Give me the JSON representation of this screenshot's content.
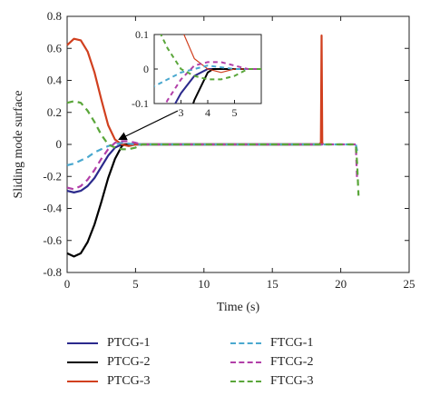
{
  "chart_data": {
    "type": "line",
    "xlabel": "Time (s)",
    "ylabel": "Sliding mode surface",
    "xlim": [
      0,
      25
    ],
    "ylim": [
      -0.8,
      0.8
    ],
    "xticks": [
      "0",
      "5",
      "10",
      "15",
      "20",
      "25"
    ],
    "yticks": [
      "-0.8",
      "-0.6",
      "-0.4",
      "-0.2",
      "0",
      "0.2",
      "0.4",
      "0.6",
      "0.8"
    ],
    "grid": false,
    "legend_position": "bottom",
    "series": [
      {
        "name": "PTCG-1",
        "color": "#2b2a8c",
        "dash": "solid",
        "x": [
          0,
          0.5,
          1,
          1.5,
          2,
          2.5,
          3,
          3.5,
          4,
          5,
          10,
          15,
          18.6
        ],
        "y": [
          -0.29,
          -0.3,
          -0.29,
          -0.26,
          -0.21,
          -0.14,
          -0.07,
          -0.02,
          0.0,
          0.0,
          0.0,
          0.0,
          0.0
        ]
      },
      {
        "name": "PTCG-2",
        "color": "#000000",
        "dash": "solid",
        "x": [
          0,
          0.5,
          1,
          1.5,
          2,
          2.5,
          3,
          3.5,
          4,
          4.2,
          5,
          10,
          15,
          18.6
        ],
        "y": [
          -0.68,
          -0.7,
          -0.68,
          -0.61,
          -0.5,
          -0.36,
          -0.21,
          -0.09,
          -0.01,
          0.0,
          0.0,
          0.0,
          0.0,
          0.0
        ]
      },
      {
        "name": "PTCG-3",
        "color": "#d1401f",
        "dash": "solid",
        "x": [
          0,
          0.5,
          1,
          1.5,
          2,
          2.5,
          3,
          3.5,
          4,
          4.5,
          5,
          10,
          15,
          18.4,
          18.55,
          18.6,
          18.65,
          18.7
        ],
        "y": [
          0.62,
          0.66,
          0.65,
          0.58,
          0.45,
          0.28,
          0.12,
          0.03,
          0.0,
          -0.01,
          0.0,
          0.0,
          0.0,
          0.0,
          0.01,
          0.68,
          0.01,
          0.0
        ]
      },
      {
        "name": "FTCG-1",
        "color": "#4aa8cf",
        "dash": "dashed",
        "x": [
          0,
          0.5,
          1,
          1.5,
          2,
          2.5,
          3,
          3.5,
          4,
          4.5,
          5,
          10,
          15,
          20,
          21.1,
          21.2
        ],
        "y": [
          -0.13,
          -0.12,
          -0.1,
          -0.08,
          -0.05,
          -0.03,
          -0.01,
          0.0,
          0.01,
          0.005,
          0.0,
          0.0,
          0.0,
          0.0,
          0.0,
          -0.04
        ]
      },
      {
        "name": "FTCG-2",
        "color": "#b23fa8",
        "dash": "dashed",
        "x": [
          0,
          0.5,
          1,
          1.5,
          2,
          2.5,
          3,
          3.5,
          4,
          4.5,
          5,
          5.5,
          10,
          15,
          20,
          21.1,
          21.2
        ],
        "y": [
          -0.27,
          -0.28,
          -0.26,
          -0.22,
          -0.16,
          -0.09,
          -0.03,
          0.01,
          0.02,
          0.02,
          0.01,
          0.0,
          0.0,
          0.0,
          0.0,
          0.0,
          -0.23
        ]
      },
      {
        "name": "FTCG-3",
        "color": "#5aa63a",
        "dash": "dashed",
        "x": [
          0,
          0.5,
          1,
          1.5,
          2,
          2.5,
          3,
          3.5,
          4,
          4.5,
          5,
          5.5,
          10,
          15,
          20,
          21.1,
          21.2,
          21.3
        ],
        "y": [
          0.26,
          0.27,
          0.26,
          0.21,
          0.14,
          0.06,
          0.0,
          -0.02,
          -0.03,
          -0.03,
          -0.02,
          0.0,
          0.0,
          0.0,
          0.0,
          0.0,
          -0.12,
          -0.32
        ]
      }
    ],
    "inset": {
      "xlim": [
        2,
        6
      ],
      "ylim": [
        -0.1,
        0.1
      ],
      "xticks": [
        "3",
        "4",
        "5"
      ],
      "yticks": [
        "-0.1",
        "0",
        "0.1"
      ]
    }
  }
}
